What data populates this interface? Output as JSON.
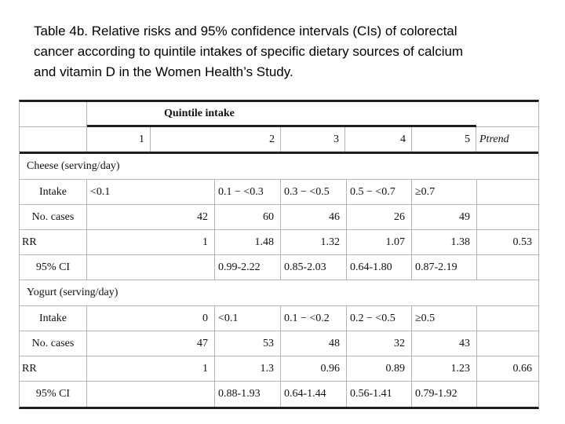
{
  "header": {
    "lines": [
      "Table 4b. Relative risks and 95% confidence intervals (CIs) of colorectal",
      "cancer according to quintile intakes of specific dietary sources of calcium",
      "and vitamin D in the Women Health’s Study."
    ]
  },
  "table": {
    "spanner_label": "Quintile intake",
    "quintiles": [
      "1",
      "2",
      "3",
      "4",
      "5"
    ],
    "ptrend_label": "Ptrend",
    "sections": [
      {
        "name": "Cheese (serving/day)",
        "rows": [
          {
            "label": "Intake",
            "values": [
              "<0.1",
              "0.1 − <0.3",
              "0.3 − <0.5",
              "0.5 − <0.7",
              "≥0.7"
            ],
            "ptrend": ""
          },
          {
            "label": "No. cases",
            "values": [
              "42",
              "60",
              "46",
              "26",
              "49"
            ],
            "ptrend": ""
          },
          {
            "label": "RR",
            "values": [
              "1",
              "1.48",
              "1.32",
              "1.07",
              "1.38"
            ],
            "ptrend": "0.53"
          },
          {
            "label": "95% CI",
            "values": [
              "",
              "0.99-2.22",
              "0.85-2.03",
              "0.64-1.80",
              "0.87-2.19"
            ],
            "ptrend": ""
          }
        ]
      },
      {
        "name": "Yogurt (serving/day)",
        "rows": [
          {
            "label": "Intake",
            "values": [
              "0",
              "<0.1",
              "0.1 − <0.2",
              "0.2 − <0.5",
              "≥0.5"
            ],
            "ptrend": ""
          },
          {
            "label": "No. cases",
            "values": [
              "47",
              "53",
              "48",
              "32",
              "43"
            ],
            "ptrend": ""
          },
          {
            "label": "RR",
            "values": [
              "1",
              "1.3",
              "0.96",
              "0.89",
              "1.23"
            ],
            "ptrend": "0.66"
          },
          {
            "label": "95% CI",
            "values": [
              "",
              "0.88-1.93",
              "0.64-1.44",
              "0.56-1.41",
              "0.79-1.92"
            ],
            "ptrend": ""
          }
        ]
      }
    ]
  }
}
